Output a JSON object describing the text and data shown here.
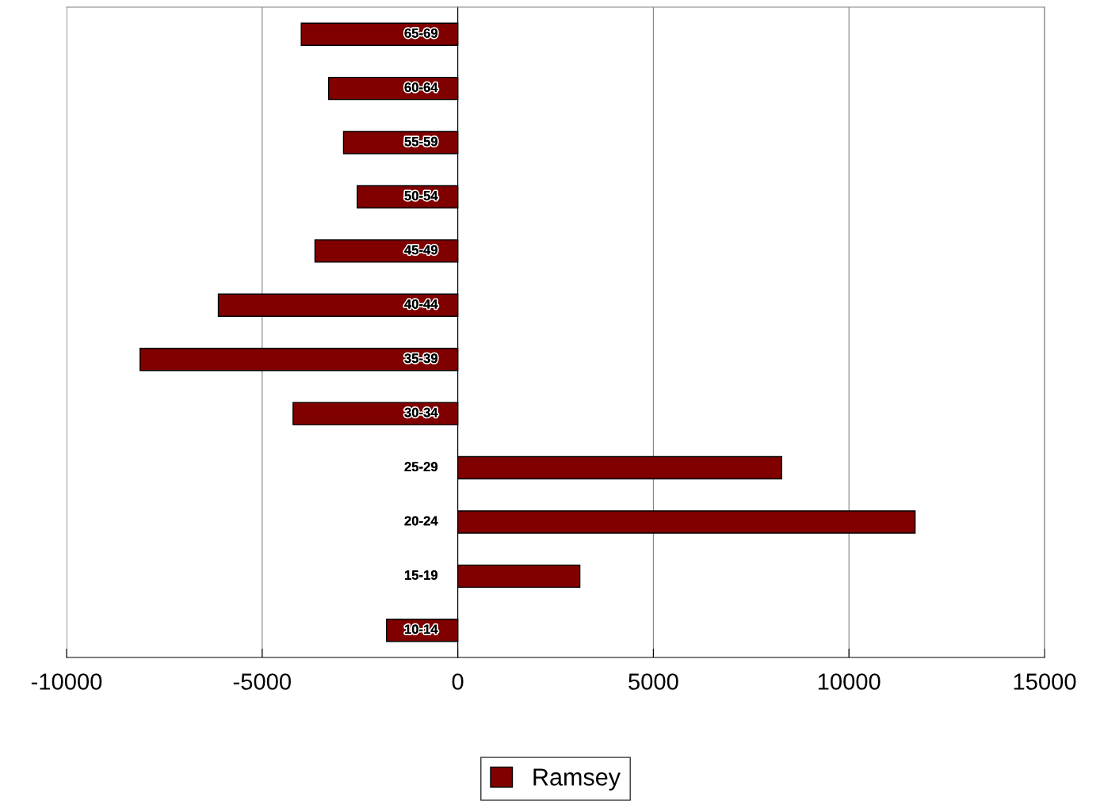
{
  "chart_data": {
    "type": "bar",
    "orientation": "horizontal",
    "categories": [
      "65-69",
      "60-64",
      "55-59",
      "50-54",
      "45-49",
      "40-44",
      "35-39",
      "30-34",
      "25-29",
      "20-24",
      "15-19",
      "10-14"
    ],
    "series": [
      {
        "name": "Ramsey",
        "color": "#800000",
        "values": [
          -4000,
          -3300,
          -2920,
          -2570,
          -3650,
          -6120,
          -8120,
          -4210,
          8280,
          11690,
          3120,
          -1820
        ]
      }
    ],
    "xlim": [
      -10000,
      15000
    ],
    "xticks": [
      -10000,
      -5000,
      0,
      5000,
      10000,
      15000
    ],
    "grid": "x",
    "legend": "bottom"
  }
}
